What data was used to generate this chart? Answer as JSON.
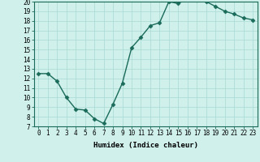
{
  "x": [
    0,
    1,
    2,
    3,
    4,
    5,
    6,
    7,
    8,
    9,
    10,
    11,
    12,
    13,
    14,
    15,
    16,
    17,
    18,
    19,
    20,
    21,
    22,
    23
  ],
  "y": [
    12.5,
    12.5,
    11.7,
    10.0,
    8.8,
    8.7,
    7.8,
    7.3,
    9.3,
    11.5,
    15.2,
    16.3,
    17.5,
    17.8,
    20.0,
    19.8,
    20.3,
    20.2,
    20.0,
    19.5,
    19.0,
    18.7,
    18.3,
    18.1
  ],
  "xlabel": "Humidex (Indice chaleur)",
  "ylim": [
    7,
    20
  ],
  "xlim_min": -0.5,
  "xlim_max": 23.5,
  "yticks": [
    7,
    8,
    9,
    10,
    11,
    12,
    13,
    14,
    15,
    16,
    17,
    18,
    19,
    20
  ],
  "xticks": [
    0,
    1,
    2,
    3,
    4,
    5,
    6,
    7,
    8,
    9,
    10,
    11,
    12,
    13,
    14,
    15,
    16,
    17,
    18,
    19,
    20,
    21,
    22,
    23
  ],
  "xtick_labels": [
    "0",
    "1",
    "2",
    "3",
    "4",
    "5",
    "6",
    "7",
    "8",
    "9",
    "10",
    "11",
    "12",
    "13",
    "14",
    "15",
    "16",
    "17",
    "18",
    "19",
    "20",
    "21",
    "22",
    "23"
  ],
  "line_color": "#1a6b5a",
  "marker": "D",
  "marker_size": 2.5,
  "bg_color": "#cff0eb",
  "grid_color": "#aeddd7",
  "tick_fontsize": 5.5,
  "xlabel_fontsize": 6.5
}
